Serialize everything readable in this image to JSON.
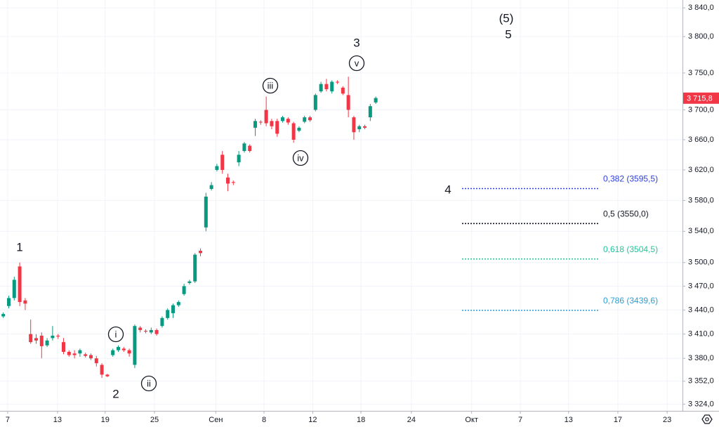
{
  "chart_data": {
    "type": "candlestick",
    "log_scale": true,
    "grid": true,
    "up_color": "#089981",
    "down_color": "#f23645",
    "ylim": [
      3316,
      3851
    ],
    "xlim": [
      -0.6,
      124
    ],
    "yticks": [
      {
        "value": 3840,
        "label": "3 840,0"
      },
      {
        "value": 3800,
        "label": "3 800,0"
      },
      {
        "value": 3750,
        "label": "3 750,0"
      },
      {
        "value": 3700,
        "label": "3 700,0"
      },
      {
        "value": 3660,
        "label": "3 660,0"
      },
      {
        "value": 3620,
        "label": "3 620,0"
      },
      {
        "value": 3580,
        "label": "3 580,0"
      },
      {
        "value": 3540,
        "label": "3 540,0"
      },
      {
        "value": 3500,
        "label": "3 500,0"
      },
      {
        "value": 3470,
        "label": "3 470,0"
      },
      {
        "value": 3440,
        "label": "3 440,0"
      },
      {
        "value": 3410,
        "label": "3 410,0"
      },
      {
        "value": 3380,
        "label": "3 380,0"
      },
      {
        "value": 3352,
        "label": "3 352,0"
      },
      {
        "value": 3324,
        "label": "3 324,0"
      }
    ],
    "xticks": [
      {
        "value": 0.8,
        "label": "7"
      },
      {
        "value": 9.9,
        "label": "13"
      },
      {
        "value": 18.6,
        "label": "19"
      },
      {
        "value": 27.6,
        "label": "25"
      },
      {
        "value": 38.8,
        "label": "Сен"
      },
      {
        "value": 47.6,
        "label": "8"
      },
      {
        "value": 56.5,
        "label": "12"
      },
      {
        "value": 65.3,
        "label": "18"
      },
      {
        "value": 74.5,
        "label": "24"
      },
      {
        "value": 85.5,
        "label": "Окт"
      },
      {
        "value": 94.4,
        "label": "7"
      },
      {
        "value": 103.2,
        "label": "13"
      },
      {
        "value": 112.2,
        "label": "17"
      },
      {
        "value": 121.2,
        "label": "23"
      }
    ],
    "open": [
      3432,
      3445,
      3455,
      3495,
      3452,
      3410,
      3405,
      3408,
      3396,
      3405,
      3408,
      3400,
      3388,
      3386,
      3386,
      3385,
      3384,
      3380,
      3372,
      3360,
      3384,
      3390,
      3392,
      3390,
      3372,
      3418,
      3414,
      3412,
      3415,
      3420,
      3430,
      3436,
      3446,
      3460,
      3474,
      3476,
      3515,
      3545,
      3595,
      3620,
      3640,
      3610,
      3604,
      3630,
      3645,
      3652,
      3676,
      3684,
      3700,
      3685,
      3685,
      3685,
      3688,
      3682,
      3672,
      3684,
      3690,
      3700,
      3725,
      3735,
      3725,
      3738,
      3730,
      3720,
      3690,
      3674,
      3678,
      3690,
      3710
    ],
    "high": [
      3437,
      3458,
      3482,
      3500,
      3455,
      3428,
      3410,
      3412,
      3405,
      3420,
      3410,
      3405,
      3390,
      3390,
      3392,
      3387,
      3386,
      3383,
      3374,
      3361,
      3392,
      3396,
      3394,
      3392,
      3422,
      3420,
      3416,
      3418,
      3417,
      3432,
      3442,
      3448,
      3452,
      3473,
      3478,
      3512,
      3518,
      3590,
      3604,
      3628,
      3645,
      3615,
      3606,
      3645,
      3657,
      3654,
      3688,
      3686,
      3718,
      3688,
      3688,
      3692,
      3690,
      3684,
      3678,
      3692,
      3692,
      3722,
      3738,
      3742,
      3740,
      3740,
      3732,
      3745,
      3692,
      3680,
      3680,
      3708,
      3718
    ],
    "low": [
      3430,
      3442,
      3452,
      3445,
      3440,
      3398,
      3398,
      3380,
      3394,
      3402,
      3404,
      3385,
      3382,
      3380,
      3382,
      3381,
      3378,
      3370,
      3356,
      3357,
      3382,
      3388,
      3388,
      3382,
      3368,
      3412,
      3411,
      3410,
      3408,
      3418,
      3428,
      3430,
      3444,
      3458,
      3472,
      3474,
      3508,
      3540,
      3593,
      3618,
      3615,
      3592,
      3600,
      3625,
      3643,
      3643,
      3665,
      3680,
      3678,
      3674,
      3664,
      3683,
      3680,
      3656,
      3670,
      3682,
      3684,
      3698,
      3723,
      3725,
      3722,
      3735,
      3720,
      3690,
      3660,
      3670,
      3674,
      3685,
      3708
    ],
    "close": [
      3435,
      3455,
      3478,
      3450,
      3448,
      3400,
      3402,
      3395,
      3402,
      3408,
      3407,
      3388,
      3384,
      3384,
      3390,
      3383,
      3380,
      3374,
      3360,
      3358,
      3390,
      3394,
      3390,
      3386,
      3420,
      3415,
      3413,
      3415,
      3410,
      3430,
      3440,
      3446,
      3450,
      3470,
      3476,
      3510,
      3512,
      3585,
      3600,
      3625,
      3620,
      3602,
      3603,
      3640,
      3655,
      3645,
      3685,
      3683,
      3682,
      3678,
      3668,
      3690,
      3683,
      3660,
      3676,
      3690,
      3686,
      3720,
      3735,
      3728,
      3738,
      3737,
      3722,
      3700,
      3670,
      3678,
      3676,
      3705,
      3716
    ],
    "current_price": {
      "value": 3715.8,
      "label": "3 715,8"
    },
    "wave_labels": [
      "1",
      "2",
      "3",
      "4",
      "5",
      "(5)"
    ],
    "circled_wave_labels": [
      "i",
      "ii",
      "iii",
      "iv",
      "v"
    ],
    "fib_levels": [
      {
        "value": 3595.5,
        "label": "0,382 (3595,5)",
        "color": "#2c3fe6"
      },
      {
        "value": 3550.0,
        "label": "0,5 (3550,0)",
        "color": "#131722"
      },
      {
        "value": 3504.5,
        "label": "0,618 (3504,5)",
        "color": "#22c39a"
      },
      {
        "value": 3439.6,
        "label": "0,786 (3439,6)",
        "color": "#2a9fd6"
      }
    ]
  }
}
